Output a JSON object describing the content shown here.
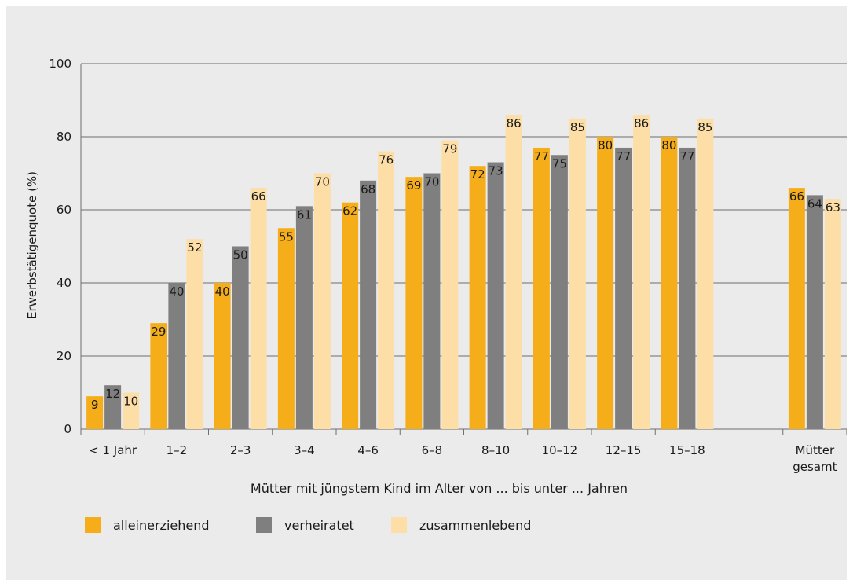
{
  "chart_data": {
    "type": "bar",
    "ylabel": "Erwerbstätigenquote (%)",
    "xlabel": "Mütter mit jüngstem Kind im Alter von ... bis unter ... Jahren",
    "ylim": [
      0,
      100
    ],
    "yticks": [
      0,
      20,
      40,
      60,
      80,
      100
    ],
    "grid": true,
    "legend_position": "bottom-left",
    "categories": [
      "< 1 Jahr",
      "1–2",
      "2–3",
      "3–4",
      "4–6",
      "6–8",
      "8–10",
      "10–12",
      "12–15",
      "15–18",
      "",
      "Mütter gesamt"
    ],
    "series": [
      {
        "name": "alleinerziehend",
        "color": "#f5ae19",
        "values": [
          9,
          29,
          40,
          55,
          62,
          69,
          72,
          77,
          80,
          80,
          null,
          66
        ]
      },
      {
        "name": "verheiratet",
        "color": "#7f7f7f",
        "values": [
          12,
          40,
          50,
          61,
          68,
          70,
          73,
          75,
          77,
          77,
          null,
          64
        ]
      },
      {
        "name": "zusammenlebend",
        "color": "#fddea7",
        "values": [
          10,
          52,
          66,
          70,
          76,
          79,
          86,
          85,
          86,
          85,
          null,
          63
        ]
      }
    ],
    "colors": {
      "background": "#ebebeb",
      "grid": "#6e6e6e",
      "label_dark": "#1a1a1a",
      "label_light": "#ffffff"
    }
  }
}
